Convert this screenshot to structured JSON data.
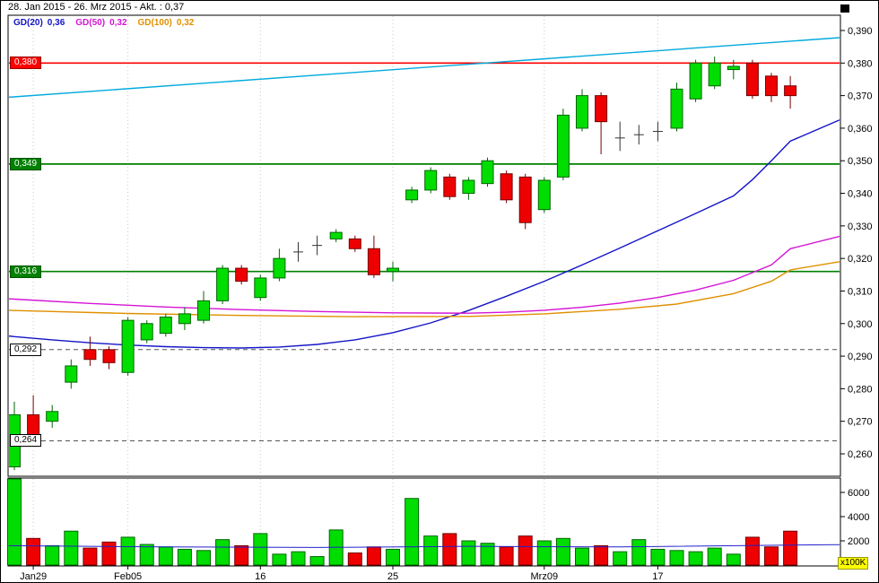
{
  "header": {
    "title": "28. Jan 2015 - 26. Mrz 2015 - Akt. : 0,37"
  },
  "legend": {
    "items": [
      {
        "label": "GD(20)",
        "value": "0,36",
        "color": "#1414c8"
      },
      {
        "label": "GD(50)",
        "value": "0,32",
        "color": "#d414d4"
      },
      {
        "label": "GD(100)",
        "value": "0,32",
        "color": "#e09000"
      }
    ]
  },
  "price_axis": {
    "ticks": [
      {
        "label": "0,390",
        "value": 0.39
      },
      {
        "label": "0,380",
        "value": 0.38
      },
      {
        "label": "0,370",
        "value": 0.37
      },
      {
        "label": "0,360",
        "value": 0.36
      },
      {
        "label": "0,350",
        "value": 0.35
      },
      {
        "label": "0,340",
        "value": 0.34
      },
      {
        "label": "0,330",
        "value": 0.33
      },
      {
        "label": "0,320",
        "value": 0.32
      },
      {
        "label": "0,310",
        "value": 0.31
      },
      {
        "label": "0,300",
        "value": 0.3
      },
      {
        "label": "0,290",
        "value": 0.29
      },
      {
        "label": "0,280",
        "value": 0.28
      },
      {
        "label": "0,270",
        "value": 0.27
      },
      {
        "label": "0,260",
        "value": 0.26
      }
    ]
  },
  "time_axis": {
    "ticks": [
      {
        "label": "Jan29",
        "index": 1
      },
      {
        "label": "Feb05",
        "index": 6
      },
      {
        "label": "16",
        "index": 13
      },
      {
        "label": "25",
        "index": 20
      },
      {
        "label": "Mrz09",
        "index": 28
      },
      {
        "label": "17",
        "index": 34
      }
    ]
  },
  "levels": [
    {
      "label": "0,380",
      "value": 0.38,
      "color": "#ff0000",
      "style": "solid",
      "box_bg": "#ff0000",
      "box_fg": "#ffffff",
      "box_border": "#990000"
    },
    {
      "label": "0,349",
      "value": 0.349,
      "color": "#008000",
      "style": "solid",
      "box_bg": "#008000",
      "box_fg": "#ffffff",
      "box_border": "#005500"
    },
    {
      "label": "0,316",
      "value": 0.316,
      "color": "#008000",
      "style": "solid",
      "box_bg": "#008000",
      "box_fg": "#ffffff",
      "box_border": "#005500"
    },
    {
      "label": "0,292",
      "value": 0.292,
      "color": "#555555",
      "style": "dashed",
      "box_bg": "#ffffff",
      "box_fg": "#000000",
      "box_border": "#000000"
    },
    {
      "label": "0,264",
      "value": 0.264,
      "color": "#555555",
      "style": "dashed",
      "box_bg": "#ffffff",
      "box_fg": "#000000",
      "box_border": "#000000"
    }
  ],
  "volume_axis": {
    "scale_label": "x100K",
    "ticks": [
      {
        "label": "6000",
        "value": 6000
      },
      {
        "label": "4000",
        "value": 4000
      },
      {
        "label": "2000",
        "value": 2000
      }
    ]
  },
  "chart_data": {
    "type": "candlestick",
    "title": "28. Jan 2015 - 26. Mrz 2015 - Akt. : 0,37",
    "period": "28. Jan 2015 - 26. Mrz 2015",
    "last_price": "0,37",
    "ylim": [
      0.2535,
      0.3945
    ],
    "volume_ylim": [
      0,
      7200
    ],
    "grid": "vertical-dotted",
    "legend_position": "top-left-inside",
    "colors": {
      "up": "#00dd00",
      "up_stroke": "#006600",
      "down": "#ee0000",
      "down_stroke": "#770000",
      "doji": "#333333",
      "volume_ma": "#2222cc",
      "resistance": "#ff0000",
      "support": "#008000"
    },
    "candles": [
      [
        0.256,
        0.276,
        0.255,
        0.272,
        7500
      ],
      [
        0.272,
        0.278,
        0.263,
        0.265,
        2200
      ],
      [
        0.27,
        0.275,
        0.268,
        0.273,
        1600
      ],
      [
        0.282,
        0.289,
        0.28,
        0.287,
        2800
      ],
      [
        0.292,
        0.296,
        0.287,
        0.289,
        1400
      ],
      [
        0.292,
        0.293,
        0.286,
        0.288,
        1900
      ],
      [
        0.285,
        0.302,
        0.284,
        0.301,
        2300
      ],
      [
        0.295,
        0.301,
        0.294,
        0.3,
        1700
      ],
      [
        0.297,
        0.303,
        0.296,
        0.302,
        1500
      ],
      [
        0.3,
        0.305,
        0.298,
        0.303,
        1300
      ],
      [
        0.301,
        0.31,
        0.3,
        0.307,
        1200
      ],
      [
        0.307,
        0.318,
        0.306,
        0.317,
        2100
      ],
      [
        0.317,
        0.318,
        0.312,
        0.313,
        1600
      ],
      [
        0.308,
        0.315,
        0.307,
        0.314,
        2600
      ],
      [
        0.314,
        0.323,
        0.313,
        0.32,
        900
      ],
      [
        0.322,
        0.325,
        0.319,
        0.322,
        1100
      ],
      [
        0.324,
        0.327,
        0.321,
        0.324,
        700
      ],
      [
        0.326,
        0.329,
        0.325,
        0.328,
        2900
      ],
      [
        0.326,
        0.327,
        0.322,
        0.323,
        1000
      ],
      [
        0.323,
        0.327,
        0.314,
        0.315,
        1500
      ],
      [
        0.316,
        0.319,
        0.313,
        0.317,
        1300
      ],
      [
        0.338,
        0.342,
        0.337,
        0.341,
        5500
      ],
      [
        0.341,
        0.348,
        0.34,
        0.347,
        2400
      ],
      [
        0.345,
        0.346,
        0.338,
        0.339,
        2600
      ],
      [
        0.34,
        0.345,
        0.338,
        0.344,
        2000
      ],
      [
        0.343,
        0.351,
        0.342,
        0.35,
        1800
      ],
      [
        0.346,
        0.347,
        0.337,
        0.338,
        1500
      ],
      [
        0.345,
        0.346,
        0.329,
        0.331,
        2400
      ],
      [
        0.335,
        0.345,
        0.334,
        0.344,
        2000
      ],
      [
        0.345,
        0.366,
        0.344,
        0.364,
        2200
      ],
      [
        0.36,
        0.372,
        0.359,
        0.37,
        1400
      ],
      [
        0.37,
        0.371,
        0.352,
        0.362,
        1600
      ],
      [
        0.357,
        0.362,
        0.353,
        0.357,
        1100
      ],
      [
        0.358,
        0.361,
        0.355,
        0.358,
        2100
      ],
      [
        0.359,
        0.362,
        0.356,
        0.359,
        1300
      ],
      [
        0.36,
        0.374,
        0.359,
        0.372,
        1200
      ],
      [
        0.369,
        0.381,
        0.368,
        0.38,
        1100
      ],
      [
        0.373,
        0.382,
        0.372,
        0.38,
        1400
      ],
      [
        0.378,
        0.381,
        0.375,
        0.379,
        900
      ],
      [
        0.38,
        0.381,
        0.369,
        0.37,
        2300
      ],
      [
        0.376,
        0.377,
        0.368,
        0.37,
        1500
      ],
      [
        0.373,
        0.376,
        0.366,
        0.37,
        2800
      ]
    ],
    "overlays": [
      {
        "name": "GD(20)",
        "color": "#1414c8",
        "points": [
          [
            -0.3,
            0.2962
          ],
          [
            0,
            0.296
          ],
          [
            2,
            0.295
          ],
          [
            4,
            0.2941
          ],
          [
            6,
            0.2934
          ],
          [
            8,
            0.2929
          ],
          [
            10,
            0.2926
          ],
          [
            12,
            0.2925
          ],
          [
            14,
            0.2928
          ],
          [
            16,
            0.2936
          ],
          [
            18,
            0.295
          ],
          [
            20,
            0.2972
          ],
          [
            22,
            0.3002
          ],
          [
            24,
            0.304
          ],
          [
            26,
            0.3084
          ],
          [
            28,
            0.313
          ],
          [
            30,
            0.318
          ],
          [
            32,
            0.3232
          ],
          [
            34,
            0.3285
          ],
          [
            36,
            0.3338
          ],
          [
            38,
            0.3392
          ],
          [
            39,
            0.3442
          ],
          [
            40,
            0.35
          ],
          [
            41,
            0.356
          ],
          [
            43.6,
            0.3625
          ]
        ]
      },
      {
        "name": "GD(50)",
        "color": "#d414d4",
        "points": [
          [
            -0.3,
            0.3076
          ],
          [
            0,
            0.3075
          ],
          [
            4,
            0.3062
          ],
          [
            8,
            0.3051
          ],
          [
            12,
            0.3043
          ],
          [
            16,
            0.3037
          ],
          [
            20,
            0.3033
          ],
          [
            24,
            0.3032
          ],
          [
            26,
            0.3035
          ],
          [
            28,
            0.3041
          ],
          [
            30,
            0.305
          ],
          [
            32,
            0.3063
          ],
          [
            34,
            0.308
          ],
          [
            36,
            0.3103
          ],
          [
            38,
            0.3133
          ],
          [
            40,
            0.318
          ],
          [
            41,
            0.323
          ],
          [
            43.6,
            0.3268
          ]
        ]
      },
      {
        "name": "GD(100)",
        "color": "#e09000",
        "points": [
          [
            -0.3,
            0.3041
          ],
          [
            0,
            0.304
          ],
          [
            6,
            0.3031
          ],
          [
            12,
            0.3025
          ],
          [
            18,
            0.3021
          ],
          [
            24,
            0.3022
          ],
          [
            28,
            0.303
          ],
          [
            32,
            0.3044
          ],
          [
            35,
            0.306
          ],
          [
            38,
            0.3092
          ],
          [
            40,
            0.313
          ],
          [
            41,
            0.3165
          ],
          [
            43.6,
            0.319
          ]
        ]
      },
      {
        "name": "trendline",
        "color": "#00aadd",
        "points": [
          [
            -0.3,
            0.3695
          ],
          [
            43.6,
            0.3878
          ]
        ]
      }
    ],
    "volume_ma_points": [
      [
        -0.3,
        1600
      ],
      [
        8,
        1500
      ],
      [
        16,
        1450
      ],
      [
        24,
        1550
      ],
      [
        32,
        1500
      ],
      [
        41,
        1650
      ],
      [
        43.6,
        1680
      ]
    ]
  }
}
